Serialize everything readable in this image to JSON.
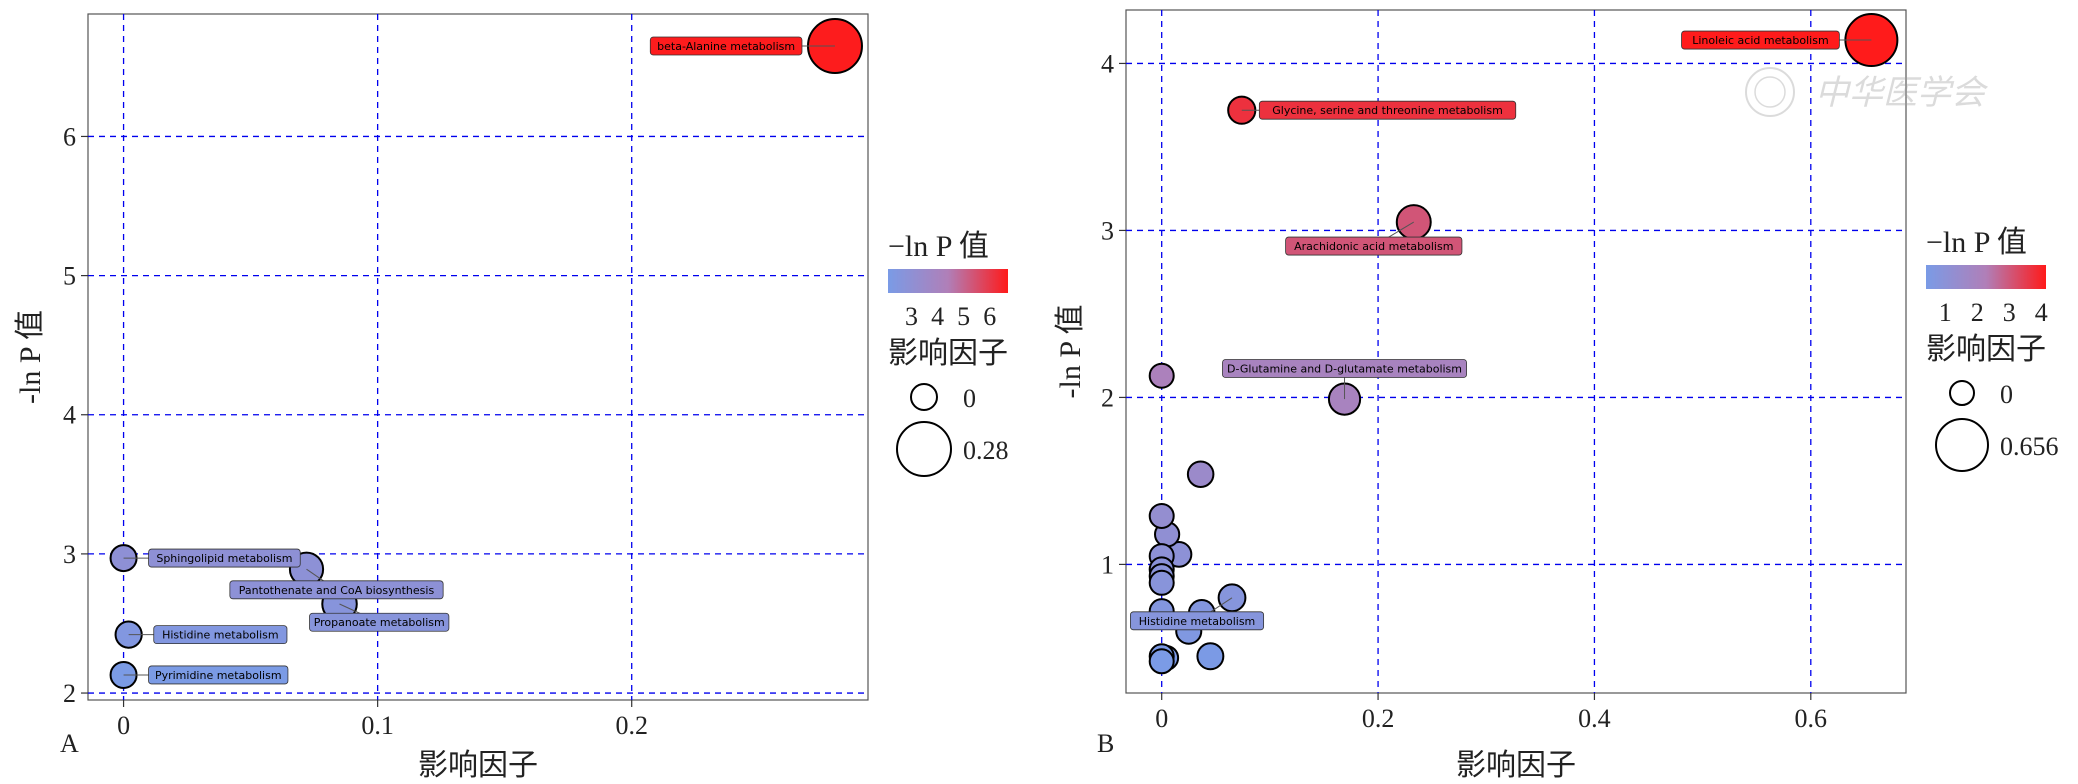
{
  "watermark_text": "中华医学会",
  "legend_color_title": "−ln P 值",
  "legend_size_title": "影响因子",
  "colors": {
    "low": "#7a9be6",
    "mid": "#b07fb8",
    "high": "#ff1a1a",
    "grid": "#0000ee",
    "frame": "#555555"
  },
  "chart_data": [
    {
      "panel_label": "A",
      "type": "scatter",
      "xlabel": "影响因子",
      "ylabel": "-ln P 值",
      "xlim": [
        -0.014,
        0.293
      ],
      "ylim": [
        1.95,
        6.88
      ],
      "xticks": [
        0,
        0.1,
        0.2
      ],
      "xtick_labels": [
        "0",
        "0.1",
        "0.2"
      ],
      "yticks": [
        2,
        3,
        4,
        5,
        6
      ],
      "ytick_labels": [
        "2",
        "3",
        "4",
        "5",
        "6"
      ],
      "grid": true,
      "legend_placement": "right",
      "color_legend": {
        "ticks": [
          "3",
          "4",
          "5",
          "6"
        ],
        "range": [
          2.1,
          6.7
        ]
      },
      "size_legend": {
        "labels": [
          "0",
          "0.28"
        ],
        "values": [
          0,
          0.28
        ]
      },
      "points": [
        {
          "x": 0.28,
          "y": 6.65,
          "label": "beta-Alanine metabolism"
        },
        {
          "x": 0.0,
          "y": 2.97,
          "label": "Sphingolipid metabolism"
        },
        {
          "x": 0.072,
          "y": 2.89,
          "label": "Pantothenate and CoA biosynthesis"
        },
        {
          "x": 0.085,
          "y": 2.64,
          "label": "Propanoate metabolism"
        },
        {
          "x": 0.002,
          "y": 2.42,
          "label": "Histidine metabolism"
        },
        {
          "x": 0.0,
          "y": 2.13,
          "label": "Pyrimidine metabolism"
        }
      ]
    },
    {
      "panel_label": "B",
      "type": "scatter",
      "xlabel": "影响因子",
      "ylabel": "-ln P 值",
      "xlim": [
        -0.033,
        0.688
      ],
      "ylim": [
        0.23,
        4.32
      ],
      "xticks": [
        0,
        0.2,
        0.4,
        0.6
      ],
      "xtick_labels": [
        "0",
        "0.2",
        "0.4",
        "0.6"
      ],
      "yticks": [
        1,
        2,
        3,
        4
      ],
      "ytick_labels": [
        "1",
        "2",
        "3",
        "4"
      ],
      "grid": true,
      "legend_placement": "right",
      "color_legend": {
        "ticks": [
          "1",
          "2",
          "3",
          "4"
        ],
        "range": [
          0.4,
          4.15
        ]
      },
      "size_legend": {
        "labels": [
          "0",
          "0.656"
        ],
        "values": [
          0,
          0.656
        ]
      },
      "points": [
        {
          "x": 0.656,
          "y": 4.14,
          "label": "Linoleic acid metabolism"
        },
        {
          "x": 0.074,
          "y": 3.72,
          "label": "Glycine, serine and threonine metabolism"
        },
        {
          "x": 0.233,
          "y": 3.05,
          "label": "Arachidonic acid metabolism"
        },
        {
          "x": 0.169,
          "y": 1.99,
          "label": "D-Glutamine and D-glutamate metabolism"
        },
        {
          "x": 0.0,
          "y": 2.13,
          "label": ""
        },
        {
          "x": 0.036,
          "y": 1.54,
          "label": ""
        },
        {
          "x": 0.0,
          "y": 1.29,
          "label": ""
        },
        {
          "x": 0.005,
          "y": 1.18,
          "label": ""
        },
        {
          "x": 0.016,
          "y": 1.06,
          "label": ""
        },
        {
          "x": 0.0,
          "y": 1.05,
          "label": ""
        },
        {
          "x": 0.0,
          "y": 0.97,
          "label": ""
        },
        {
          "x": 0.0,
          "y": 0.93,
          "label": ""
        },
        {
          "x": 0.0,
          "y": 0.89,
          "label": ""
        },
        {
          "x": 0.065,
          "y": 0.8,
          "label": "Histidine metabolism"
        },
        {
          "x": 0.037,
          "y": 0.71,
          "label": ""
        },
        {
          "x": 0.0,
          "y": 0.72,
          "label": ""
        },
        {
          "x": 0.025,
          "y": 0.6,
          "label": ""
        },
        {
          "x": 0.045,
          "y": 0.45,
          "label": ""
        },
        {
          "x": 0.0,
          "y": 0.45,
          "label": ""
        },
        {
          "x": 0.004,
          "y": 0.44,
          "label": ""
        },
        {
          "x": 0.0,
          "y": 0.42,
          "label": ""
        }
      ]
    }
  ]
}
